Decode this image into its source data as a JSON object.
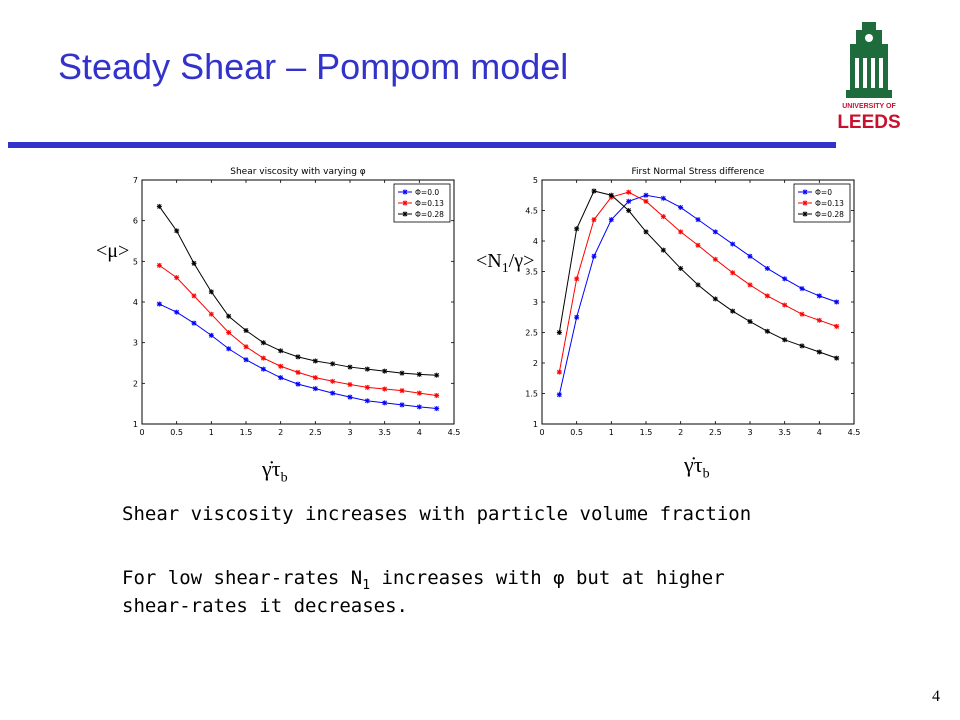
{
  "slide": {
    "title": "Steady Shear – Pompom model",
    "logo_text": [
      "UNIVERSITY OF",
      "LEEDS"
    ],
    "body_line1": "Shear viscosity increases with particle volume fraction",
    "body_line2_a": "For low shear-rates N",
    "body_line2_sub": "1",
    "body_line2_b": " increases with φ but at higher",
    "body_line3": "shear-rates it decreases.",
    "page_number": "4",
    "xaxis_symbol": "γ̇τ",
    "xaxis_sub": "b",
    "left_ylabel": "<μ>",
    "right_ylabel_a": "<N",
    "right_ylabel_sub": "1",
    "right_ylabel_b": "/γ>",
    "colors": {
      "title": "#3333cc",
      "rule": "#3333cc",
      "logo": "#1e6b3c",
      "logo_text": "#c8102e"
    }
  },
  "chart_data": [
    {
      "type": "line",
      "title": "Shear viscosity with varying φ",
      "xlabel": "",
      "ylabel": "",
      "xlim": [
        0,
        4.5
      ],
      "ylim": [
        1,
        7
      ],
      "xticks": [
        0,
        0.5,
        1,
        1.5,
        2,
        2.5,
        3,
        3.5,
        4,
        4.5
      ],
      "yticks": [
        1,
        2,
        3,
        4,
        5,
        6,
        7
      ],
      "legend_position": "top-right",
      "x": [
        0.25,
        0.5,
        0.75,
        1.0,
        1.25,
        1.5,
        1.75,
        2.0,
        2.25,
        2.5,
        2.75,
        3.0,
        3.25,
        3.5,
        3.75,
        4.0,
        4.25
      ],
      "series": [
        {
          "name": "Φ=0.0",
          "color": "#0000ff",
          "values": [
            3.95,
            3.75,
            3.48,
            3.18,
            2.85,
            2.58,
            2.35,
            2.14,
            1.98,
            1.87,
            1.76,
            1.66,
            1.57,
            1.52,
            1.47,
            1.42,
            1.38
          ]
        },
        {
          "name": "Φ=0.13",
          "color": "#ff0000",
          "values": [
            4.9,
            4.6,
            4.15,
            3.7,
            3.25,
            2.9,
            2.62,
            2.42,
            2.27,
            2.14,
            2.05,
            1.97,
            1.9,
            1.86,
            1.82,
            1.76,
            1.7
          ]
        },
        {
          "name": "Φ=0.28",
          "color": "#000000",
          "values": [
            6.35,
            5.75,
            4.95,
            4.25,
            3.65,
            3.3,
            3.0,
            2.8,
            2.65,
            2.55,
            2.48,
            2.4,
            2.35,
            2.3,
            2.25,
            2.22,
            2.2
          ]
        }
      ]
    },
    {
      "type": "line",
      "title": "First Normal Stress difference",
      "xlabel": "",
      "ylabel": "",
      "xlim": [
        0,
        4.5
      ],
      "ylim": [
        1,
        5
      ],
      "xticks": [
        0,
        0.5,
        1,
        1.5,
        2,
        2.5,
        3,
        3.5,
        4,
        4.5
      ],
      "yticks": [
        1,
        1.5,
        2,
        2.5,
        3,
        3.5,
        4,
        4.5,
        5
      ],
      "legend_position": "top-right",
      "x": [
        0.25,
        0.5,
        0.75,
        1.0,
        1.25,
        1.5,
        1.75,
        2.0,
        2.25,
        2.5,
        2.75,
        3.0,
        3.25,
        3.5,
        3.75,
        4.0,
        4.25
      ],
      "series": [
        {
          "name": "Φ=0",
          "color": "#0000ff",
          "values": [
            1.48,
            2.75,
            3.75,
            4.35,
            4.65,
            4.75,
            4.7,
            4.55,
            4.35,
            4.15,
            3.95,
            3.75,
            3.55,
            3.38,
            3.22,
            3.1,
            3.0
          ]
        },
        {
          "name": "Φ=0.13",
          "color": "#ff0000",
          "values": [
            1.85,
            3.38,
            4.35,
            4.72,
            4.8,
            4.65,
            4.4,
            4.15,
            3.93,
            3.7,
            3.48,
            3.28,
            3.1,
            2.95,
            2.8,
            2.7,
            2.6
          ]
        },
        {
          "name": "Φ=0.28",
          "color": "#000000",
          "values": [
            2.5,
            4.2,
            4.82,
            4.75,
            4.5,
            4.15,
            3.85,
            3.55,
            3.28,
            3.05,
            2.85,
            2.68,
            2.52,
            2.38,
            2.28,
            2.18,
            2.08
          ]
        }
      ]
    }
  ]
}
